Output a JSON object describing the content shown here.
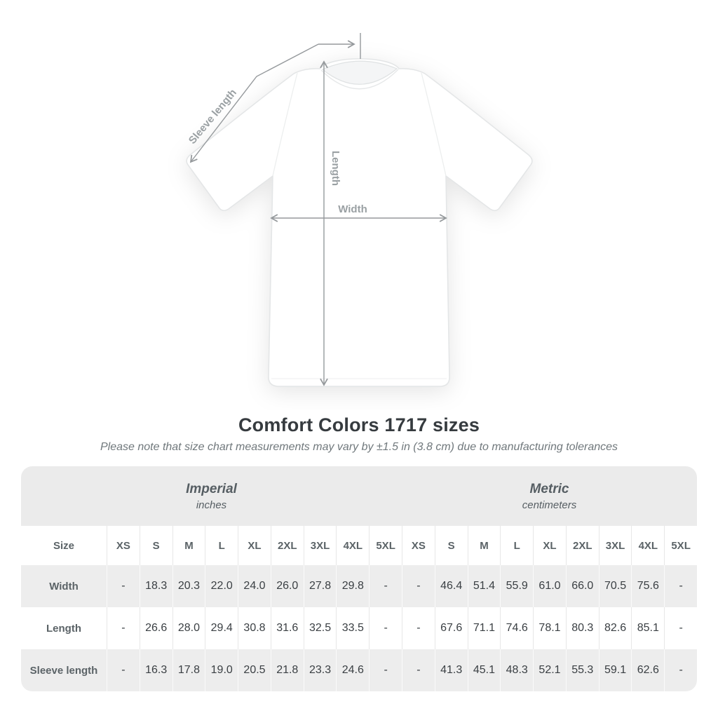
{
  "title": "Comfort Colors 1717 sizes",
  "subtitle": "Please note that size chart measurements may vary by ±1.5 in (3.8 cm) due to manufacturing tolerances",
  "figure": {
    "labels": {
      "sleeve_length": "Sleeve length",
      "length": "Length",
      "width": "Width"
    }
  },
  "table": {
    "unit_groups": [
      {
        "label": "Imperial",
        "sublabel": "inches"
      },
      {
        "label": "Metric",
        "sublabel": "centimeters"
      }
    ],
    "size_header": "Size",
    "sizes": [
      "XS",
      "S",
      "M",
      "L",
      "XL",
      "2XL",
      "3XL",
      "4XL",
      "5XL"
    ],
    "rows": [
      {
        "label": "Width",
        "imperial": [
          "-",
          "18.3",
          "20.3",
          "22.0",
          "24.0",
          "26.0",
          "27.8",
          "29.8",
          "-"
        ],
        "metric": [
          "-",
          "46.4",
          "51.4",
          "55.9",
          "61.0",
          "66.0",
          "70.5",
          "75.6",
          "-"
        ]
      },
      {
        "label": "Length",
        "imperial": [
          "-",
          "26.6",
          "28.0",
          "29.4",
          "30.8",
          "31.6",
          "32.5",
          "33.5",
          "-"
        ],
        "metric": [
          "-",
          "67.6",
          "71.1",
          "74.6",
          "78.1",
          "80.3",
          "82.6",
          "85.1",
          "-"
        ]
      },
      {
        "label": "Sleeve length",
        "imperial": [
          "-",
          "16.3",
          "17.8",
          "19.0",
          "20.5",
          "21.8",
          "23.3",
          "24.6",
          "-"
        ],
        "metric": [
          "-",
          "41.3",
          "45.1",
          "48.3",
          "52.1",
          "55.3",
          "59.1",
          "62.6",
          "-"
        ]
      }
    ]
  },
  "chart_data": {
    "type": "table",
    "title": "Comfort Colors 1717 sizes",
    "note": "Please note that size chart measurements may vary by ±1.5 in (3.8 cm) due to manufacturing tolerances",
    "column_groups": [
      "Imperial (inches)",
      "Metric (centimeters)"
    ],
    "sizes": [
      "XS",
      "S",
      "M",
      "L",
      "XL",
      "2XL",
      "3XL",
      "4XL",
      "5XL"
    ],
    "rows": [
      {
        "measurement": "Width",
        "imperial_in": [
          null,
          18.3,
          20.3,
          22.0,
          24.0,
          26.0,
          27.8,
          29.8,
          null
        ],
        "metric_cm": [
          null,
          46.4,
          51.4,
          55.9,
          61.0,
          66.0,
          70.5,
          75.6,
          null
        ]
      },
      {
        "measurement": "Length",
        "imperial_in": [
          null,
          26.6,
          28.0,
          29.4,
          30.8,
          31.6,
          32.5,
          33.5,
          null
        ],
        "metric_cm": [
          null,
          67.6,
          71.1,
          74.6,
          78.1,
          80.3,
          82.6,
          85.1,
          null
        ]
      },
      {
        "measurement": "Sleeve length",
        "imperial_in": [
          null,
          16.3,
          17.8,
          19.0,
          20.5,
          21.8,
          23.3,
          24.6,
          null
        ],
        "metric_cm": [
          null,
          41.3,
          45.1,
          48.3,
          52.1,
          55.3,
          59.1,
          62.6,
          null
        ]
      }
    ]
  },
  "colors": {
    "band_background": "#ebebeb",
    "alt_row_background": "#ededed",
    "header_text": "#5b6367",
    "value_text": "#3a3f43",
    "title_text": "#363b3f",
    "subtitle_text": "#70787c",
    "measure_annotation": "#95999c"
  }
}
